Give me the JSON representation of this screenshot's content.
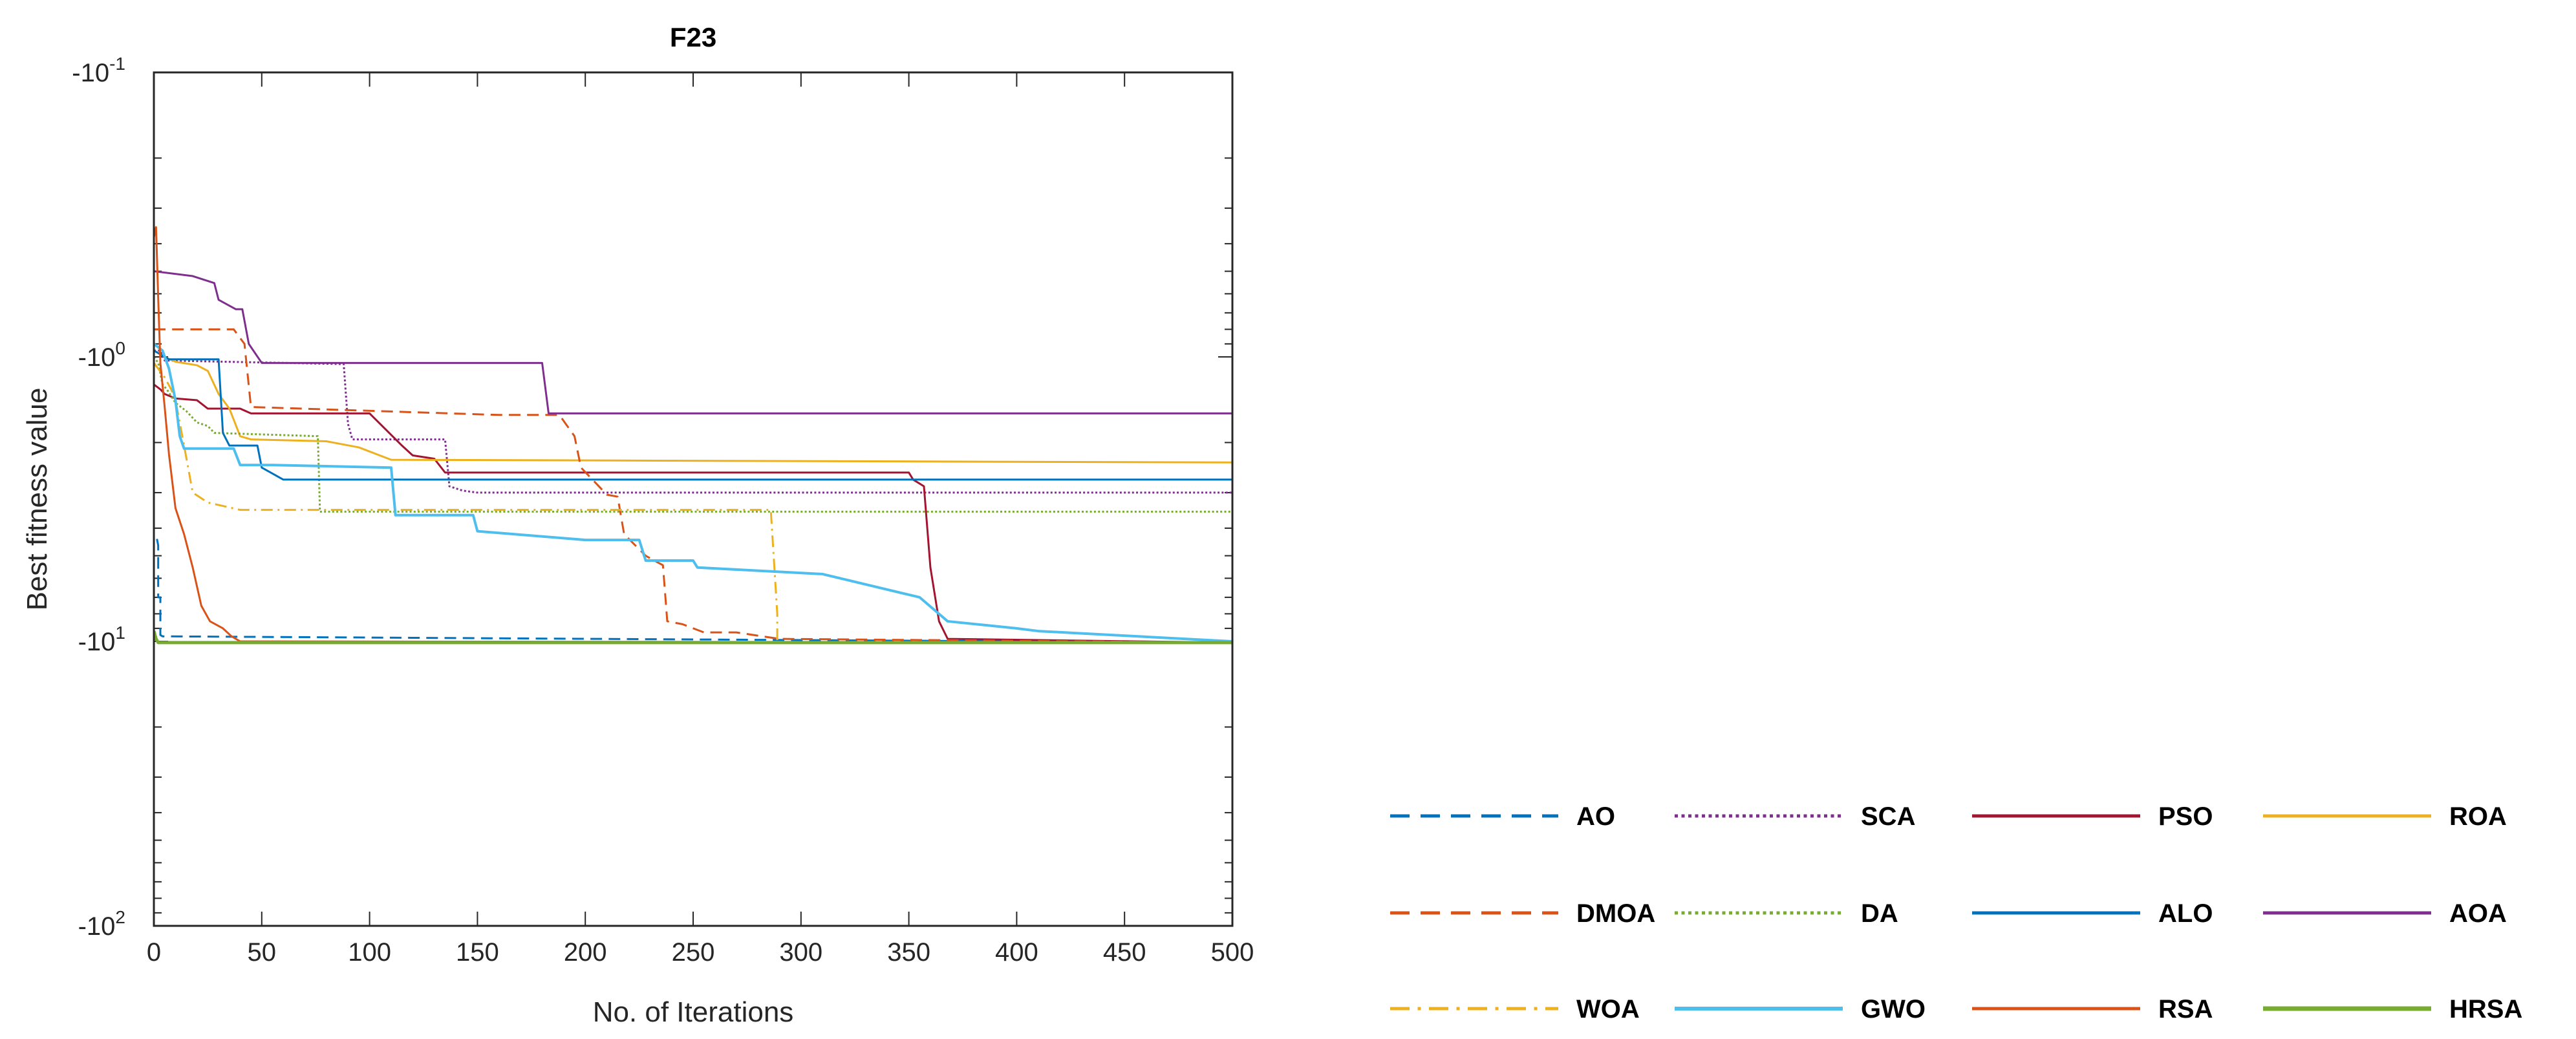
{
  "chart_data": {
    "type": "line",
    "title": "F23",
    "xlabel": "No. of Iterations",
    "ylabel": "Best fitness value",
    "yscale": "log",
    "y_direction": "negative values, log-scaled magnitude",
    "xlim": [
      0,
      500
    ],
    "ylim_magnitude": [
      0.1,
      100
    ],
    "x_ticks": [
      0,
      50,
      100,
      150,
      200,
      250,
      300,
      350,
      400,
      450,
      500
    ],
    "y_ticks": [
      {
        "magnitude": 0.1,
        "base": "-10",
        "exp": "-1"
      },
      {
        "magnitude": 1,
        "base": "-10",
        "exp": "0"
      },
      {
        "magnitude": 10,
        "base": "-10",
        "exp": "1"
      },
      {
        "magnitude": 100,
        "base": "-10",
        "exp": "2"
      }
    ],
    "legend_layout": "3 rows x 4 columns, bottom-right",
    "series": [
      {
        "name": "AO",
        "color": "#0072BD",
        "dash": "dashed",
        "width": 3,
        "points": [
          [
            0,
            4.6
          ],
          [
            0,
            4.2
          ],
          [
            1,
            4.2
          ],
          [
            2,
            4.6
          ],
          [
            2,
            7.0
          ],
          [
            3,
            7.0
          ],
          [
            3,
            9.5
          ],
          [
            4,
            9.6
          ],
          [
            500,
            10.1
          ]
        ]
      },
      {
        "name": "SCA",
        "color": "#7E2F8E",
        "dash": "dotted",
        "width": 3,
        "points": [
          [
            0,
            0.95
          ],
          [
            3,
            0.95
          ],
          [
            5,
            1.03
          ],
          [
            88,
            1.06
          ],
          [
            90,
            1.72
          ],
          [
            92,
            1.95
          ],
          [
            135,
            1.95
          ],
          [
            137,
            2.85
          ],
          [
            143,
            2.95
          ],
          [
            150,
            3.0
          ],
          [
            330,
            3.0
          ],
          [
            500,
            3.0
          ]
        ]
      },
      {
        "name": "PSO",
        "color": "#A2142F",
        "dash": "solid",
        "width": 3,
        "points": [
          [
            0,
            1.25
          ],
          [
            3,
            1.3
          ],
          [
            5,
            1.35
          ],
          [
            10,
            1.4
          ],
          [
            20,
            1.42
          ],
          [
            25,
            1.52
          ],
          [
            40,
            1.52
          ],
          [
            45,
            1.58
          ],
          [
            100,
            1.58
          ],
          [
            115,
            2.05
          ],
          [
            120,
            2.22
          ],
          [
            130,
            2.28
          ],
          [
            135,
            2.55
          ],
          [
            350,
            2.55
          ],
          [
            352,
            2.7
          ],
          [
            357,
            2.85
          ],
          [
            360,
            5.5
          ],
          [
            364,
            8.5
          ],
          [
            368,
            9.8
          ],
          [
            500,
            10.1
          ]
        ]
      },
      {
        "name": "ROA",
        "color": "#EDB120",
        "dash": "solid",
        "width": 3,
        "points": [
          [
            0,
            0.95
          ],
          [
            5,
            1.0
          ],
          [
            10,
            1.04
          ],
          [
            20,
            1.07
          ],
          [
            25,
            1.12
          ],
          [
            30,
            1.35
          ],
          [
            35,
            1.52
          ],
          [
            40,
            1.9
          ],
          [
            45,
            1.95
          ],
          [
            80,
            1.98
          ],
          [
            95,
            2.08
          ],
          [
            110,
            2.3
          ],
          [
            500,
            2.35
          ]
        ]
      },
      {
        "name": "DMOA",
        "color": "#D95319",
        "dash": "dashed",
        "width": 3,
        "points": [
          [
            0,
            0.8
          ],
          [
            37,
            0.8
          ],
          [
            42,
            0.9
          ],
          [
            45,
            1.5
          ],
          [
            160,
            1.6
          ],
          [
            188,
            1.6
          ],
          [
            195,
            1.9
          ],
          [
            198,
            2.45
          ],
          [
            210,
            3.05
          ],
          [
            215,
            3.1
          ],
          [
            218,
            4.2
          ],
          [
            228,
            5.0
          ],
          [
            232,
            5.2
          ],
          [
            236,
            5.4
          ],
          [
            238,
            8.5
          ],
          [
            245,
            8.7
          ],
          [
            255,
            9.3
          ],
          [
            270,
            9.3
          ],
          [
            290,
            9.8
          ],
          [
            500,
            10.1
          ]
        ]
      },
      {
        "name": "DA",
        "color": "#77AC30",
        "dash": "dotted",
        "width": 3,
        "points": [
          [
            0,
            1.0
          ],
          [
            2,
            1.05
          ],
          [
            4,
            1.25
          ],
          [
            6,
            1.3
          ],
          [
            10,
            1.45
          ],
          [
            15,
            1.55
          ],
          [
            20,
            1.7
          ],
          [
            25,
            1.75
          ],
          [
            28,
            1.85
          ],
          [
            76,
            1.9
          ],
          [
            77,
            3.5
          ],
          [
            500,
            3.5
          ]
        ]
      },
      {
        "name": "ALO",
        "color": "#0072BD",
        "dash": "solid",
        "width": 3,
        "points": [
          [
            0,
            0.95
          ],
          [
            7,
            1.02
          ],
          [
            30,
            1.02
          ],
          [
            32,
            1.85
          ],
          [
            35,
            2.05
          ],
          [
            48,
            2.05
          ],
          [
            50,
            2.45
          ],
          [
            60,
            2.7
          ],
          [
            500,
            2.7
          ]
        ]
      },
      {
        "name": "AOA",
        "color": "#7E2F8E",
        "dash": "solid",
        "width": 3,
        "points": [
          [
            0,
            0.5
          ],
          [
            18,
            0.52
          ],
          [
            28,
            0.55
          ],
          [
            30,
            0.63
          ],
          [
            38,
            0.68
          ],
          [
            41,
            0.68
          ],
          [
            44,
            0.9
          ],
          [
            50,
            1.05
          ],
          [
            120,
            1.05
          ],
          [
            180,
            1.05
          ],
          [
            183,
            1.58
          ],
          [
            500,
            1.58
          ]
        ]
      },
      {
        "name": "WOA",
        "color": "#EDB120",
        "dash": "dashdot",
        "width": 3,
        "points": [
          [
            0,
            1.05
          ],
          [
            2,
            1.1
          ],
          [
            5,
            1.18
          ],
          [
            8,
            1.3
          ],
          [
            10,
            1.42
          ],
          [
            14,
            2.05
          ],
          [
            18,
            3.0
          ],
          [
            25,
            3.25
          ],
          [
            40,
            3.45
          ],
          [
            286,
            3.45
          ],
          [
            289,
            8.0
          ],
          [
            289,
            10.1
          ],
          [
            500,
            10.1
          ]
        ]
      },
      {
        "name": "GWO",
        "color": "#4DBEEE",
        "dash": "solid",
        "width": 4,
        "points": [
          [
            0,
            0.9
          ],
          [
            4,
            0.95
          ],
          [
            7,
            1.1
          ],
          [
            10,
            1.42
          ],
          [
            12,
            1.9
          ],
          [
            14,
            2.1
          ],
          [
            37,
            2.1
          ],
          [
            40,
            2.4
          ],
          [
            55,
            2.4
          ],
          [
            110,
            2.45
          ],
          [
            112,
            3.6
          ],
          [
            148,
            3.6
          ],
          [
            150,
            4.1
          ],
          [
            200,
            4.4
          ],
          [
            225,
            4.4
          ],
          [
            228,
            5.2
          ],
          [
            250,
            5.2
          ],
          [
            252,
            5.5
          ],
          [
            310,
            5.8
          ],
          [
            355,
            7.0
          ],
          [
            368,
            8.5
          ],
          [
            400,
            9.0
          ],
          [
            410,
            9.2
          ],
          [
            500,
            10.0
          ]
        ]
      },
      {
        "name": "RSA",
        "color": "#D95319",
        "dash": "solid",
        "width": 3,
        "points": [
          [
            0,
            0.38
          ],
          [
            1,
            0.35
          ],
          [
            2,
            0.62
          ],
          [
            3,
            1.05
          ],
          [
            5,
            1.5
          ],
          [
            7,
            2.2
          ],
          [
            10,
            3.4
          ],
          [
            14,
            4.2
          ],
          [
            18,
            5.5
          ],
          [
            22,
            7.5
          ],
          [
            26,
            8.5
          ],
          [
            32,
            9.0
          ],
          [
            36,
            9.6
          ],
          [
            40,
            10.0
          ],
          [
            500,
            10.1
          ]
        ]
      },
      {
        "name": "HRSA",
        "color": "#77AC30",
        "dash": "solid",
        "width": 5,
        "points": [
          [
            0,
            9.2
          ],
          [
            1,
            9.8
          ],
          [
            2,
            10.1
          ],
          [
            500,
            10.1
          ]
        ]
      }
    ]
  }
}
